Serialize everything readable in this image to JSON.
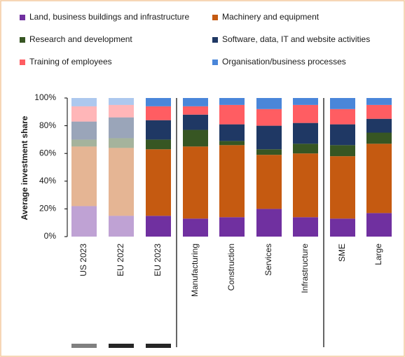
{
  "chart_data": {
    "type": "stacked_bar",
    "y_label": "Average investment share",
    "categories": [
      "US 2023",
      "EU 2022",
      "EU 2023",
      "Manufacturing",
      "Construction",
      "Services",
      "Infrastructure",
      "SME",
      "Large"
    ],
    "series": [
      {
        "name": "Land, business buildings and infrastructure",
        "color": "#7030a0",
        "values": [
          22,
          15,
          15,
          13,
          14,
          20,
          14,
          13,
          17
        ]
      },
      {
        "name": "Machinery and equipment",
        "color": "#c55a11",
        "values": [
          43,
          49,
          48,
          52,
          52,
          39,
          46,
          45,
          50
        ]
      },
      {
        "name": "Research and development",
        "color": "#375623",
        "values": [
          5,
          7,
          7,
          12,
          3,
          4,
          7,
          8,
          8
        ]
      },
      {
        "name": "Software, data, IT and website activities",
        "color": "#1f3864",
        "values": [
          13,
          15,
          14,
          11,
          12,
          17,
          15,
          15,
          10
        ]
      },
      {
        "name": "Training of employees",
        "color": "#ff5d62",
        "values": [
          11,
          9,
          10,
          6,
          14,
          12,
          13,
          11,
          10
        ]
      },
      {
        "name": "Organisation/business processes",
        "color": "#4a86d9",
        "values": [
          6,
          5,
          6,
          6,
          5,
          8,
          5,
          8,
          5
        ]
      }
    ],
    "ylim": [
      0,
      100
    ],
    "yticks": [
      {
        "value": 0,
        "label": "0%"
      },
      {
        "value": 20,
        "label": "20%"
      },
      {
        "value": 40,
        "label": "40%"
      },
      {
        "value": 60,
        "label": "60%"
      },
      {
        "value": 80,
        "label": "80%"
      },
      {
        "value": 100,
        "label": "100%"
      }
    ],
    "legend": "top"
  }
}
